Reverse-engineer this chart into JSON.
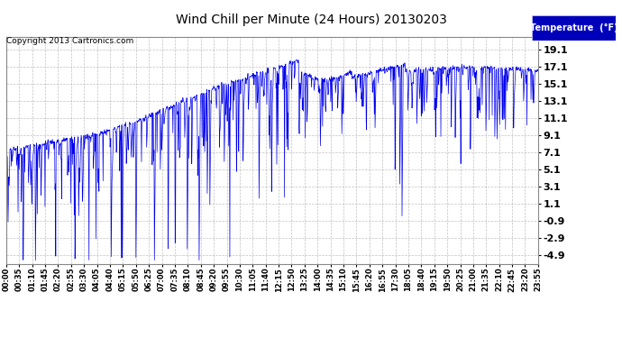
{
  "title": "Wind Chill per Minute (24 Hours) 20130203",
  "copyright_text": "Copyright 2013 Cartronics.com",
  "legend_label": "Temperature  (°F)",
  "line_color": "#0000ee",
  "background_color": "#ffffff",
  "plot_bg_color": "#ffffff",
  "grid_color": "#999999",
  "legend_bg": "#0000bb",
  "legend_fg": "#ffffff",
  "yticks": [
    19.1,
    17.1,
    15.1,
    13.1,
    11.1,
    9.1,
    7.1,
    5.1,
    3.1,
    1.1,
    -0.9,
    -2.9,
    -4.9
  ],
  "ymin": -5.9,
  "ymax": 20.5,
  "xtick_labels": [
    "00:00",
    "00:35",
    "01:10",
    "01:45",
    "02:20",
    "02:55",
    "03:30",
    "04:05",
    "04:40",
    "05:15",
    "05:50",
    "06:25",
    "07:00",
    "07:35",
    "08:10",
    "08:45",
    "09:20",
    "09:55",
    "10:30",
    "11:05",
    "11:40",
    "12:15",
    "12:50",
    "13:25",
    "14:00",
    "14:35",
    "15:10",
    "15:45",
    "16:20",
    "16:55",
    "17:30",
    "18:05",
    "18:40",
    "19:15",
    "19:50",
    "20:25",
    "21:00",
    "21:35",
    "22:10",
    "22:45",
    "23:20",
    "23:55"
  ],
  "num_minutes": 1440,
  "seed": 42
}
